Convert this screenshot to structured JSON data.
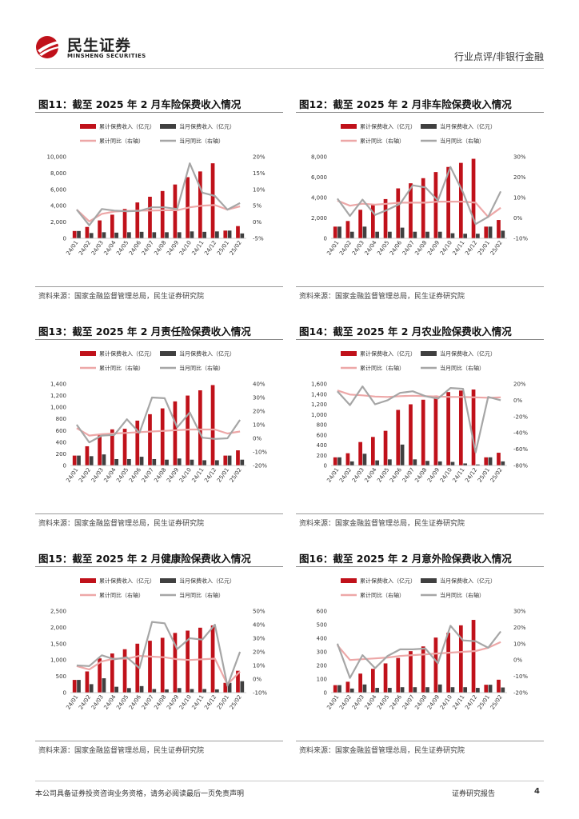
{
  "header": {
    "brand_cn": "民生证券",
    "brand_en": "MINSHENG SECURITIES",
    "category": "行业点评/非银行金融"
  },
  "footer": {
    "disclaimer": "本公司具备证券投资咨询业务资格，请务必阅读最后一页免责声明",
    "report_type": "证券研究报告",
    "page": "4"
  },
  "colors": {
    "cum_bar": "#c0111a",
    "month_bar": "#404040",
    "cum_yoy": "#eda7a7",
    "month_yoy": "#a6a6a6",
    "brand": "#c0111a"
  },
  "chart_data": [
    {
      "type": "bar",
      "title": "图11：截至 2025 年 2 月车险保费收入情况",
      "source": "资料来源：国家金融监督管理总局，民生证券研究院",
      "legend": [
        "累计保费收入（亿元）",
        "当月保费收入（亿元）",
        "累计同比（右轴）",
        "当月同比（右轴）"
      ],
      "categories": [
        "24/01",
        "24/02",
        "24/03",
        "24/04",
        "24/05",
        "24/06",
        "24/07",
        "24/08",
        "24/09",
        "24/10",
        "24/11",
        "24/12",
        "25/01",
        "25/02"
      ],
      "y_ticks": [
        "0",
        "2,000",
        "4,000",
        "6,000",
        "8,000",
        "10,000"
      ],
      "ylim": [
        0,
        10000
      ],
      "y2_ticks": [
        "-5%",
        "0%",
        "5%",
        "10%",
        "15%",
        "20%"
      ],
      "y2lim": [
        -5,
        20
      ],
      "series": [
        {
          "name": "累计保费收入（亿元）",
          "axis": "left",
          "values": [
            900,
            1400,
            2200,
            2900,
            3600,
            4400,
            5100,
            5800,
            6600,
            7500,
            8200,
            9200,
            950,
            1500
          ]
        },
        {
          "name": "当月保费收入（亿元）",
          "axis": "left",
          "values": [
            900,
            650,
            750,
            700,
            750,
            800,
            750,
            750,
            750,
            850,
            800,
            850,
            950,
            600
          ]
        },
        {
          "name": "累计同比（右轴）",
          "axis": "right",
          "values": [
            3.8,
            0.2,
            2.5,
            3.2,
            3.4,
            3.5,
            3.5,
            3.6,
            3.6,
            4.5,
            5.0,
            5.2,
            3.8,
            4.8
          ]
        },
        {
          "name": "当月同比（右轴）",
          "axis": "right",
          "values": [
            3.8,
            -1.0,
            4.0,
            3.5,
            3.3,
            3.4,
            4.5,
            4.5,
            4.0,
            18.0,
            9.0,
            8.0,
            3.8,
            5.8
          ]
        }
      ]
    },
    {
      "type": "bar",
      "title": "图12：截至 2025 年 2 月非车险保费收入情况",
      "source": "资料来源：国家金融监督管理总局，民生证券研究院",
      "legend": [
        "累计保费收入（亿元）",
        "当月保费收入（亿元）",
        "累计同比（右轴）",
        "当月同比（右轴）"
      ],
      "categories": [
        "24/01",
        "24/02",
        "24/03",
        "24/04",
        "24/05",
        "24/06",
        "24/07",
        "24/08",
        "24/09",
        "24/10",
        "24/11",
        "24/12",
        "25/01",
        "25/02"
      ],
      "y_ticks": [
        "0",
        "2,000",
        "4,000",
        "6,000",
        "8,000"
      ],
      "ylim": [
        0,
        8000
      ],
      "y2_ticks": [
        "-10%",
        "0%",
        "10%",
        "20%",
        "30%"
      ],
      "y2lim": [
        -10,
        30
      ],
      "series": [
        {
          "name": "累计保费收入（亿元）",
          "axis": "left",
          "values": [
            1150,
            1700,
            2800,
            3300,
            3850,
            4900,
            5400,
            5900,
            6500,
            7000,
            7400,
            7800,
            1150,
            1800
          ]
        },
        {
          "name": "当月保费收入（亿元）",
          "axis": "left",
          "values": [
            1150,
            650,
            1150,
            650,
            650,
            1050,
            650,
            650,
            650,
            500,
            450,
            450,
            1150,
            750
          ]
        },
        {
          "name": "累计同比（右轴）",
          "axis": "right",
          "values": [
            8.5,
            6.0,
            7.0,
            6.5,
            7.0,
            7.5,
            7.5,
            7.5,
            8.0,
            8.0,
            8.0,
            7.5,
            0.5,
            5.0
          ]
        },
        {
          "name": "当月同比（右轴）",
          "axis": "right",
          "values": [
            9.5,
            1.0,
            9.0,
            1.5,
            4.0,
            7.0,
            16.0,
            15.0,
            8.5,
            25.0,
            12.5,
            -3.0,
            0.5,
            13.0
          ]
        }
      ]
    },
    {
      "type": "bar",
      "title": "图13：截至 2025 年 2 月责任险保费收入情况",
      "source": "资料来源：国家金融监督管理总局，民生证券研究院",
      "legend": [
        "累计保费收入（亿元）",
        "当月保费收入（亿元）",
        "累计同比（右轴）",
        "当月同比（右轴）"
      ],
      "categories": [
        "24/01",
        "24/02",
        "24/03",
        "24/04",
        "24/05",
        "24/06",
        "24/07",
        "24/08",
        "24/09",
        "24/10",
        "24/11",
        "24/12",
        "25/01",
        "25/02"
      ],
      "y_ticks": [
        "0",
        "200",
        "400",
        "600",
        "800",
        "1,000",
        "1,200",
        "1,400"
      ],
      "ylim": [
        0,
        1400
      ],
      "y2_ticks": [
        "-20%",
        "-10%",
        "0%",
        "10%",
        "20%",
        "30%",
        "40%"
      ],
      "y2lim": [
        -20,
        40
      ],
      "series": [
        {
          "name": "累计保费收入（亿元）",
          "axis": "left",
          "values": [
            170,
            330,
            520,
            620,
            630,
            770,
            880,
            980,
            1100,
            1200,
            1290,
            1380,
            170,
            260
          ]
        },
        {
          "name": "当月保费收入（亿元）",
          "axis": "left",
          "values": [
            170,
            160,
            190,
            110,
            110,
            150,
            110,
            100,
            120,
            100,
            90,
            90,
            170,
            100
          ]
        },
        {
          "name": "累计同比（右轴）",
          "axis": "right",
          "values": [
            7.5,
            2.0,
            3.0,
            3.5,
            4.0,
            4.5,
            5.0,
            5.5,
            6.0,
            6.5,
            6.5,
            6.5,
            3.5,
            5.0
          ]
        },
        {
          "name": "当月同比（右轴）",
          "axis": "right",
          "values": [
            10.0,
            -3.0,
            2.0,
            2.5,
            14.0,
            4.0,
            30.0,
            29.5,
            8.0,
            19.0,
            0.5,
            -0.5,
            0.0,
            13.5
          ]
        }
      ]
    },
    {
      "type": "bar",
      "title": "图14：截至 2025 年 2 月农业险保费收入情况",
      "source": "资料来源：国家金融监督管理总局，民生证券研究院",
      "legend": [
        "累计保费收入（亿元）",
        "当月保费收入（亿元）",
        "累计同比（右轴）",
        "当月同比（右轴）"
      ],
      "categories": [
        "24/01",
        "24/02",
        "24/03",
        "24/04",
        "24/05",
        "24/06",
        "24/07",
        "24/08",
        "24/09",
        "24/10",
        "24/11",
        "24/12",
        "25/01",
        "25/02"
      ],
      "y_ticks": [
        "0",
        "200",
        "400",
        "600",
        "800",
        "1,000",
        "1,200",
        "1,400",
        "1,600"
      ],
      "ylim": [
        0,
        1600
      ],
      "y2_ticks": [
        "-80%",
        "-60%",
        "-40%",
        "-20%",
        "0%",
        "20%"
      ],
      "y2lim": [
        -80,
        20
      ],
      "series": [
        {
          "name": "累计保费收入（亿元）",
          "axis": "left",
          "values": [
            160,
            240,
            460,
            560,
            680,
            1090,
            1200,
            1290,
            1370,
            1440,
            1470,
            1490,
            160,
            250
          ]
        },
        {
          "name": "当月保费收入（亿元）",
          "axis": "left",
          "values": [
            160,
            80,
            230,
            100,
            120,
            410,
            120,
            90,
            80,
            70,
            40,
            20,
            160,
            80
          ]
        },
        {
          "name": "累计同比（右轴）",
          "axis": "right",
          "values": [
            12.0,
            7.0,
            6.0,
            4.5,
            4.0,
            5.0,
            5.5,
            5.0,
            4.5,
            4.0,
            4.0,
            3.5,
            3.0,
            3.5
          ]
        },
        {
          "name": "当月同比（右轴）",
          "axis": "right",
          "values": [
            11.0,
            -6.0,
            17.0,
            -5.0,
            0.0,
            9.0,
            11.0,
            5.0,
            2.0,
            15.0,
            14.0,
            -64.0,
            4.0,
            0.0
          ]
        }
      ]
    },
    {
      "type": "bar",
      "title": "图15：截至 2025 年 2 月健康险保费收入情况",
      "source": "资料来源：国家金融监督管理总局，民生证券研究院",
      "legend": [
        "累计保费收入（亿元）",
        "当月保费收入（亿元）",
        "累计同比（右轴）",
        "当月同比（右轴）"
      ],
      "categories": [
        "24/01",
        "24/02",
        "24/03",
        "24/04",
        "24/05",
        "24/06",
        "24/07",
        "24/08",
        "24/09",
        "24/10",
        "24/11",
        "24/12",
        "25/01",
        "25/02"
      ],
      "y_ticks": [
        "0",
        "500",
        "1,000",
        "1,500",
        "2,000",
        "2,500"
      ],
      "ylim": [
        0,
        2500
      ],
      "y2_ticks": [
        "-10%",
        "0%",
        "10%",
        "20%",
        "30%",
        "40%",
        "50%"
      ],
      "y2lim": [
        -10,
        50
      ],
      "series": [
        {
          "name": "累计保费收入（亿元）",
          "axis": "left",
          "values": [
            390,
            650,
            1050,
            1200,
            1330,
            1500,
            1590,
            1680,
            1830,
            1900,
            1990,
            2060,
            300,
            670
          ]
        },
        {
          "name": "当月保费收入（亿元）",
          "axis": "left",
          "values": [
            390,
            260,
            440,
            180,
            140,
            200,
            110,
            100,
            140,
            110,
            110,
            100,
            300,
            350
          ]
        },
        {
          "name": "累计同比（右轴）",
          "axis": "right",
          "values": [
            9.5,
            7.0,
            13.0,
            15.0,
            15.0,
            17.0,
            16.5,
            16.0,
            14.5,
            14.0,
            14.5,
            15.0,
            -4.0,
            5.5
          ]
        },
        {
          "name": "当月同比（右轴）",
          "axis": "right",
          "values": [
            10.0,
            9.5,
            17.5,
            14.5,
            16.0,
            8.0,
            42.0,
            41.0,
            22.0,
            30.0,
            29.0,
            40.0,
            -5.0,
            20.0
          ]
        }
      ]
    },
    {
      "type": "bar",
      "title": "图16：截至 2025 年 2 月意外险保费收入情况",
      "source": "资料来源：国家金融监督管理总局，民生证券研究院",
      "legend": [
        "累计保费收入（亿元）",
        "当月保费收入（亿元）",
        "累计同比（右轴）",
        "当月同比（右轴）"
      ],
      "categories": [
        "24/01",
        "24/02",
        "24/03",
        "24/04",
        "24/05",
        "24/06",
        "24/07",
        "24/08",
        "24/09",
        "24/10",
        "24/11",
        "24/12",
        "25/01",
        "25/02"
      ],
      "y_ticks": [
        "0",
        "100",
        "200",
        "300",
        "400",
        "500",
        "600"
      ],
      "ylim": [
        0,
        600
      ],
      "y2_ticks": [
        "-20%",
        "-10%",
        "0%",
        "10%",
        "20%",
        "30%"
      ],
      "y2lim": [
        -20,
        30
      ],
      "series": [
        {
          "name": "累计保费收入（亿元）",
          "axis": "left",
          "values": [
            55,
            80,
            140,
            175,
            215,
            255,
            305,
            340,
            405,
            440,
            495,
            535,
            58,
            95
          ]
        },
        {
          "name": "当月保费收入（亿元）",
          "axis": "left",
          "values": [
            55,
            30,
            60,
            35,
            35,
            40,
            40,
            40,
            60,
            40,
            40,
            35,
            58,
            38
          ]
        },
        {
          "name": "累计同比（右轴）",
          "axis": "right",
          "values": [
            9.0,
            0.0,
            0.5,
            1.0,
            1.5,
            2.5,
            3.0,
            3.5,
            4.0,
            4.5,
            5.0,
            5.5,
            7.5,
            11.0
          ]
        },
        {
          "name": "当月同比（右轴）",
          "axis": "right",
          "values": [
            10.0,
            -11.0,
            3.0,
            -5.0,
            2.5,
            6.5,
            6.5,
            7.0,
            -2.0,
            21.0,
            12.0,
            11.5,
            7.5,
            17.5
          ]
        }
      ]
    }
  ]
}
